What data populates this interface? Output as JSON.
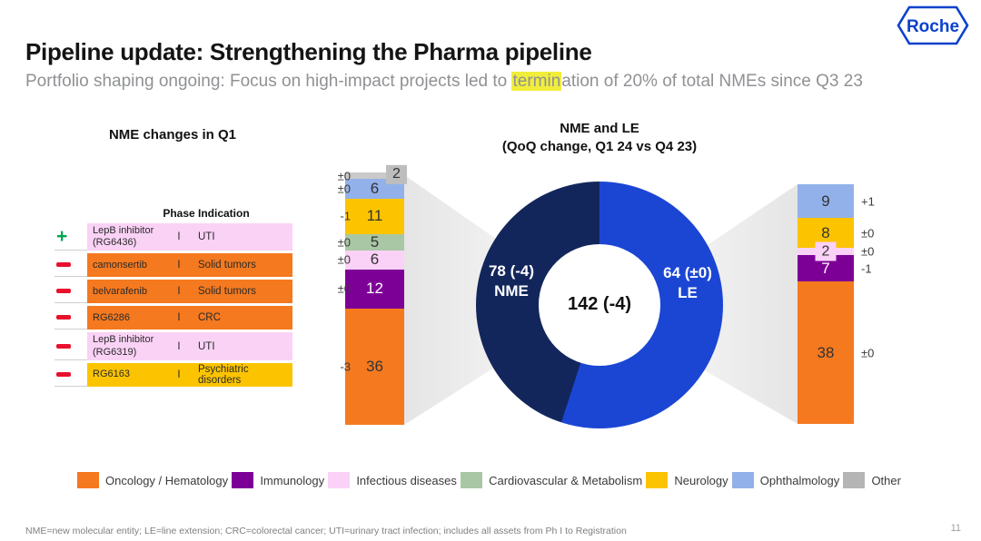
{
  "header": {
    "title": "Pipeline update: Strengthening the Pharma pipeline",
    "subtitle": {
      "pre": "Portfolio shaping ongoing: Focus on high-impact projects led to ",
      "highlight": "termin",
      "post": "ation of 20% of total NMEs since Q3 23"
    },
    "logo_text": "Roche",
    "logo_color": "#0b41cd"
  },
  "left_panel": {
    "title": "NME changes in Q1",
    "table": {
      "phase_header": "Phase",
      "indication_header": "Indication",
      "rows": [
        {
          "change_icon": "plus",
          "name": "LepB inhibitor (RG6436)",
          "phase": "I",
          "indication": "UTI",
          "row_color": "#fad2f6"
        },
        {
          "change_icon": "minus",
          "name": "camonsertib",
          "phase": "I",
          "indication": "Solid tumors",
          "row_color": "#f5791f"
        },
        {
          "change_icon": "minus",
          "name": "belvarafenib",
          "phase": "I",
          "indication": "Solid tumors",
          "row_color": "#f5791f"
        },
        {
          "change_icon": "minus",
          "name": "RG6286",
          "phase": "I",
          "indication": "CRC",
          "row_color": "#f5791f"
        },
        {
          "change_icon": "minus",
          "name": "LepB inhibitor (RG6319)",
          "phase": "I",
          "indication": "UTI",
          "row_color": "#fad2f6"
        },
        {
          "change_icon": "minus",
          "name": "RG6163",
          "phase": "I",
          "indication": "Psychiatric disorders",
          "row_color": "#fcc400"
        }
      ]
    }
  },
  "chart_data": [
    {
      "type": "bar",
      "name": "NME stacked bar",
      "stacked": true,
      "total": 78,
      "segments": [
        {
          "category": "Other",
          "value": 2,
          "change": "±0",
          "color": "#c9c9c9",
          "overlay_box": true,
          "box_color": "#bdbdbd"
        },
        {
          "category": "Ophthalmology",
          "value": 6,
          "change": "±0",
          "color": "#92b1ea"
        },
        {
          "category": "Neurology",
          "value": 11,
          "change": "-1",
          "color": "#fcc400"
        },
        {
          "category": "Cardiovascular & Metabolism",
          "value": 5,
          "change": "±0",
          "color": "#a9c7a4"
        },
        {
          "category": "Infectious diseases",
          "value": 6,
          "change": "±0",
          "color": "#fbd2f7"
        },
        {
          "category": "Immunology",
          "value": 12,
          "change": "±0",
          "color": "#7d0096",
          "label_color": "#ffffff"
        },
        {
          "category": "Oncology / Hematology",
          "value": 36,
          "change": "-3",
          "color": "#f5791f"
        }
      ]
    },
    {
      "type": "pie",
      "name": "NME and LE donut",
      "title": "NME and LE",
      "subtitle": "(QoQ change, Q1 24 vs Q4 23)",
      "center_label": "142 (-4)",
      "boundary_deg": 198,
      "slices": [
        {
          "label": "LE",
          "value": 64,
          "value_label": "64 (±0)",
          "color": "#1b46d4"
        },
        {
          "label": "NME",
          "value": 78,
          "value_label": "78 (-4)",
          "color": "#13265c"
        }
      ]
    },
    {
      "type": "bar",
      "name": "LE stacked bar",
      "stacked": true,
      "total": 64,
      "segments": [
        {
          "category": "Ophthalmology",
          "value": 9,
          "change": "+1",
          "color": "#92b1ea"
        },
        {
          "category": "Neurology",
          "value": 8,
          "change": "±0",
          "color": "#fcc400"
        },
        {
          "category": "Infectious diseases",
          "value": 2,
          "change": "±0",
          "color": "#fbd2f7",
          "overlay_box": true,
          "box_color": "#fbd2f7"
        },
        {
          "category": "Immunology",
          "value": 7,
          "change": "-1",
          "color": "#7d0096",
          "label_color": "#ffffff"
        },
        {
          "category": "Oncology / Hematology",
          "value": 38,
          "change": "±0",
          "color": "#f5791f"
        }
      ]
    }
  ],
  "legend": {
    "items": [
      {
        "label": "Oncology / Hematology",
        "color": "#f5791f"
      },
      {
        "label": "Immunology",
        "color": "#7d0096"
      },
      {
        "label": "Infectious diseases",
        "color": "#fbd2f7"
      },
      {
        "label": "Cardiovascular & Metabolism",
        "color": "#a9c7a4"
      },
      {
        "label": "Neurology",
        "color": "#fcc400"
      },
      {
        "label": "Ophthalmology",
        "color": "#92b1ea"
      },
      {
        "label": "Other",
        "color": "#b5b5b5"
      }
    ]
  },
  "footer": {
    "footnote": "NME=new molecular entity; LE=line extension; CRC=colorectal cancer; UTI=urinary tract infection; includes all assets from Ph I to Registration",
    "page_number": "11"
  }
}
